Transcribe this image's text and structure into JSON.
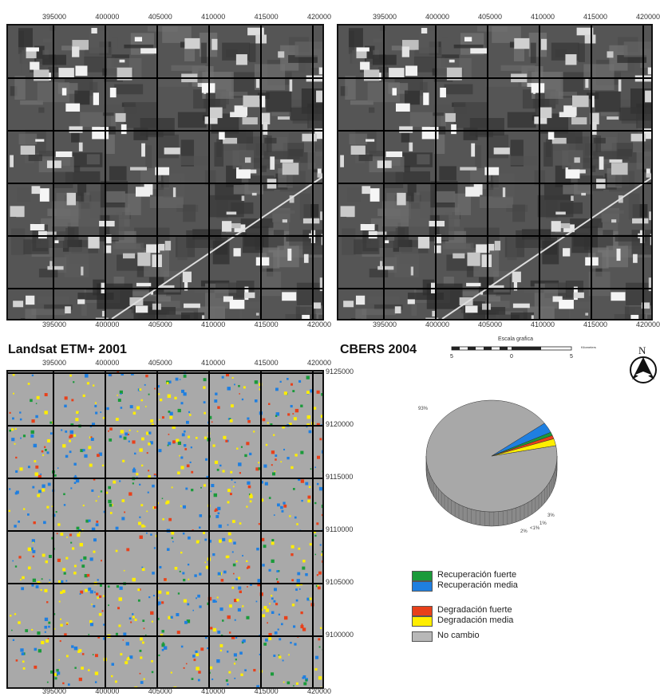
{
  "x_ticks": [
    "395000",
    "400000",
    "405000",
    "410000",
    "415000",
    "420000"
  ],
  "y_ticks": [
    "9125000",
    "9120000",
    "9115000",
    "9110000",
    "9105000",
    "9100000"
  ],
  "panels": {
    "landsat_caption": "Landsat ETM+ 2001",
    "cbers_caption": "CBERS 2004"
  },
  "scale_bar": {
    "title": "Escala grafica",
    "left_label": "5",
    "mid_label": "0",
    "right_label": "5",
    "unit": "Kilometers"
  },
  "north_arrow": {
    "label": "N",
    "icon": "north-arrow-icon"
  },
  "pie_chart": {
    "type": "pie",
    "slices": [
      {
        "label": "93%",
        "value": 93,
        "color": "#a8a8a8"
      },
      {
        "label": "3%",
        "value": 3,
        "color": "#1f7fe0"
      },
      {
        "label": "1%",
        "value": 1,
        "color": "#1a9a3a"
      },
      {
        "label": "<1%",
        "value": 1,
        "color": "#e8401a"
      },
      {
        "label": "2%",
        "value": 2,
        "color": "#ffee00"
      }
    ]
  },
  "legend": [
    {
      "label": "Recuperación fuerte",
      "color": "#1a9a3a"
    },
    {
      "label": "Recuperación media",
      "color": "#1f7fe0"
    },
    {
      "label": "Degradación fuerte",
      "color": "#e8401a"
    },
    {
      "label": "Degradación media",
      "color": "#ffee00"
    },
    {
      "label": "No cambio",
      "color": "#b8b8b8"
    }
  ]
}
